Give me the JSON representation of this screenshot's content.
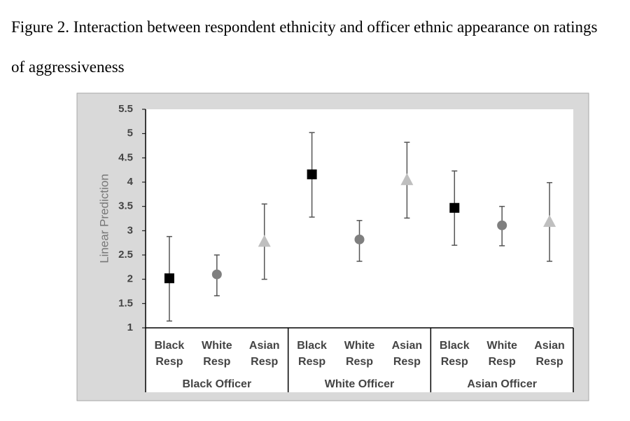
{
  "chart_data": {
    "type": "errorbar",
    "title": "Figure 2. Interaction between respondent ethnicity and officer ethnic appearance on ratings of aggressiveness",
    "y_label": "Linear Prediction",
    "groups": [
      "Black Officer",
      "White Officer",
      "Asian Officer"
    ],
    "categories": [
      "Black Resp",
      "White Resp",
      "Asian Resp",
      "Black Resp",
      "White Resp",
      "Asian Resp",
      "Black Resp",
      "White Resp",
      "Asian Resp"
    ],
    "values": [
      2.02,
      2.1,
      2.77,
      4.16,
      2.82,
      4.04,
      3.47,
      3.11,
      3.18
    ],
    "lower": [
      1.14,
      1.66,
      2.0,
      3.28,
      2.37,
      3.26,
      2.7,
      2.69,
      2.37
    ],
    "upper": [
      2.88,
      2.5,
      3.55,
      5.02,
      3.21,
      4.82,
      4.23,
      3.5,
      3.99
    ],
    "markers": [
      {
        "shape": "square",
        "color": "#000000"
      },
      {
        "shape": "circle",
        "color": "#7f7f7f"
      },
      {
        "shape": "triangle",
        "color": "#bfbfbf"
      }
    ],
    "ylim": [
      1,
      5.5
    ],
    "yticks": [
      1,
      1.5,
      2,
      2.5,
      3,
      3.5,
      4,
      4.5,
      5,
      5.5
    ]
  }
}
